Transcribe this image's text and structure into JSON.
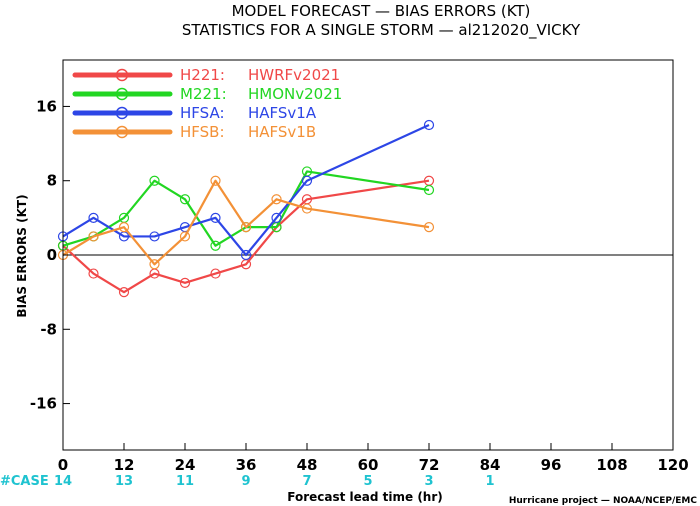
{
  "chart_data": {
    "type": "line",
    "title": "MODEL FORECAST — BIAS ERRORS (KT)",
    "subtitle": "STATISTICS FOR A SINGLE STORM — al212020_VICKY",
    "xlabel": "Forecast lead time (hr)",
    "ylabel": "BIAS ERRORS (KT)",
    "xlim": [
      0,
      120
    ],
    "ylim": [
      -21,
      21
    ],
    "x_ticks": [
      0,
      12,
      24,
      36,
      48,
      60,
      72,
      84,
      96,
      108,
      120
    ],
    "y_ticks": [
      -16,
      -8,
      0,
      8,
      16
    ],
    "grid": false,
    "zero_line": true,
    "legend_position": "top-left",
    "case_label": "#CASE",
    "case_counts": [
      {
        "x": 0,
        "n": "14"
      },
      {
        "x": 12,
        "n": "13"
      },
      {
        "x": 24,
        "n": "11"
      },
      {
        "x": 36,
        "n": "9"
      },
      {
        "x": 48,
        "n": "7"
      },
      {
        "x": 60,
        "n": "5"
      },
      {
        "x": 72,
        "n": "3"
      },
      {
        "x": 84,
        "n": "1"
      }
    ],
    "series": [
      {
        "name": "H221:",
        "desc": "HWRFv2021",
        "color": "#f04848",
        "x": [
          0,
          6,
          12,
          18,
          24,
          30,
          36,
          42,
          48,
          72
        ],
        "y": [
          1,
          -2,
          -4,
          -2,
          -3,
          -2,
          -1,
          3,
          6,
          8
        ]
      },
      {
        "name": "M221:",
        "desc": "HMONv2021",
        "color": "#22d622",
        "x": [
          0,
          6,
          12,
          18,
          24,
          30,
          36,
          42,
          48,
          72
        ],
        "y": [
          1,
          2,
          4,
          8,
          6,
          1,
          3,
          3,
          9,
          7
        ]
      },
      {
        "name": "HFSA:",
        "desc": "HAFSv1A",
        "color": "#2d46e6",
        "x": [
          0,
          6,
          12,
          18,
          24,
          30,
          36,
          42,
          48,
          72
        ],
        "y": [
          2,
          4,
          2,
          2,
          3,
          4,
          0,
          4,
          8,
          14
        ]
      },
      {
        "name": "HFSB:",
        "desc": "HAFSv1B",
        "color": "#f39137",
        "x": [
          0,
          6,
          12,
          18,
          24,
          30,
          36,
          42,
          48,
          72
        ],
        "y": [
          0,
          2,
          3,
          -1,
          2,
          8,
          3,
          6,
          5,
          3
        ]
      }
    ]
  },
  "credit": "Hurricane project — NOAA/NCEP/EMC"
}
